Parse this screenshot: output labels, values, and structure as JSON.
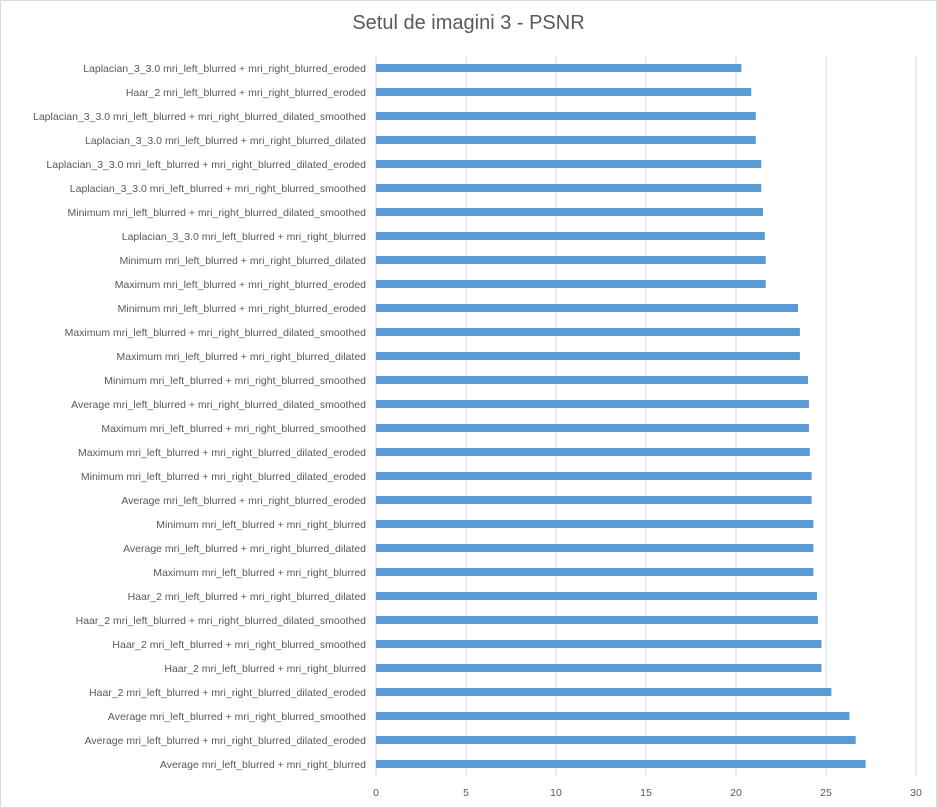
{
  "chart_data": {
    "type": "bar",
    "orientation": "horizontal",
    "title": "Setul de imagini 3 - PSNR",
    "xlabel": "",
    "ylabel": "",
    "xlim": [
      0,
      30
    ],
    "x_ticks": [
      "0",
      "5",
      "10",
      "15",
      "20",
      "25",
      "30"
    ],
    "grid": "vertical",
    "legend": "none",
    "bar_color": "#5b9bd5",
    "categories": [
      "Laplacian_3_3.0 mri_left_blurred + mri_right_blurred_eroded",
      "Haar_2 mri_left_blurred + mri_right_blurred_eroded",
      "Laplacian_3_3.0 mri_left_blurred + mri_right_blurred_dilated_smoothed",
      "Laplacian_3_3.0 mri_left_blurred + mri_right_blurred_dilated",
      "Laplacian_3_3.0 mri_left_blurred + mri_right_blurred_dilated_eroded",
      "Laplacian_3_3.0 mri_left_blurred + mri_right_blurred_smoothed",
      "Minimum mri_left_blurred + mri_right_blurred_dilated_smoothed",
      "Laplacian_3_3.0 mri_left_blurred + mri_right_blurred",
      "Minimum mri_left_blurred + mri_right_blurred_dilated",
      "Maximum mri_left_blurred + mri_right_blurred_eroded",
      "Minimum mri_left_blurred + mri_right_blurred_eroded",
      "Maximum mri_left_blurred + mri_right_blurred_dilated_smoothed",
      "Maximum mri_left_blurred + mri_right_blurred_dilated",
      "Minimum mri_left_blurred + mri_right_blurred_smoothed",
      "Average mri_left_blurred + mri_right_blurred_dilated_smoothed",
      "Maximum mri_left_blurred + mri_right_blurred_smoothed",
      "Maximum mri_left_blurred + mri_right_blurred_dilated_eroded",
      "Minimum mri_left_blurred + mri_right_blurred_dilated_eroded",
      "Average mri_left_blurred + mri_right_blurred_eroded",
      "Minimum mri_left_blurred + mri_right_blurred",
      "Average mri_left_blurred + mri_right_blurred_dilated",
      "Maximum mri_left_blurred + mri_right_blurred",
      "Haar_2 mri_left_blurred + mri_right_blurred_dilated",
      "Haar_2 mri_left_blurred + mri_right_blurred_dilated_smoothed",
      "Haar_2 mri_left_blurred + mri_right_blurred_smoothed",
      "Haar_2 mri_left_blurred + mri_right_blurred",
      "Haar_2 mri_left_blurred + mri_right_blurred_dilated_eroded",
      "Average mri_left_blurred + mri_right_blurred_smoothed",
      "Average mri_left_blurred + mri_right_blurred_dilated_eroded",
      "Average mri_left_blurred + mri_right_blurred"
    ],
    "values": [
      20.3,
      20.85,
      21.1,
      21.1,
      21.4,
      21.4,
      21.5,
      21.6,
      21.65,
      21.65,
      23.45,
      23.55,
      23.55,
      24.0,
      24.05,
      24.05,
      24.1,
      24.2,
      24.2,
      24.3,
      24.3,
      24.3,
      24.5,
      24.55,
      24.75,
      24.75,
      25.3,
      26.3,
      26.65,
      27.2
    ]
  }
}
